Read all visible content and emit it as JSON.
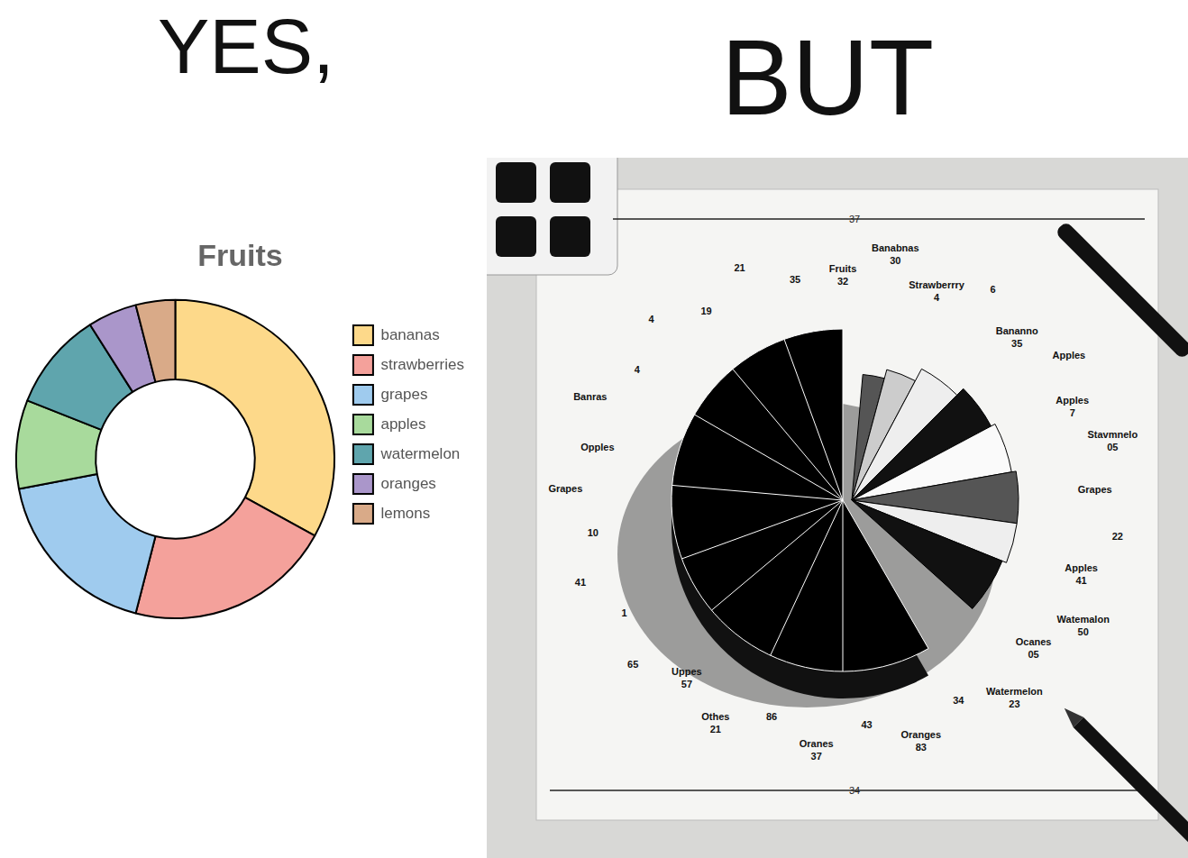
{
  "header": {
    "left": "YES,",
    "right": "BUT"
  },
  "chart_data": {
    "type": "doughnut",
    "title": "Fruits",
    "categories": [
      "bananas",
      "strawberries",
      "grapes",
      "apples",
      "watermelon",
      "oranges",
      "lemons"
    ],
    "values": [
      33,
      21,
      18,
      9,
      10,
      5,
      4
    ],
    "colors": [
      "#fdd98a",
      "#f4a19b",
      "#9fcbee",
      "#a8da9c",
      "#5fa5ad",
      "#aa96ca",
      "#d9aa88"
    ],
    "legend": "right"
  },
  "sketch": {
    "rule_top": "37",
    "rule_bottom": "34",
    "labels": [
      [
        "Fruits",
        "32"
      ],
      [
        "Banabnas",
        "30"
      ],
      [
        "Strawberrry",
        "4"
      ],
      [
        "6"
      ],
      [
        "Bananno",
        "35"
      ],
      [
        "Apples"
      ],
      [
        "Apples",
        "7"
      ],
      [
        "Stavmnelo",
        "05"
      ],
      [
        "Grapes"
      ],
      [
        "22"
      ],
      [
        "Apples",
        "41"
      ],
      [
        "Watemalon",
        "50"
      ],
      [
        "Ocanes",
        "05"
      ],
      [
        "Watermelon",
        "23"
      ],
      [
        "34"
      ],
      [
        "Oranges",
        "83"
      ],
      [
        "43"
      ],
      [
        "Oranes",
        "37"
      ],
      [
        "86"
      ],
      [
        "Othes",
        "21"
      ],
      [
        "Uppes",
        "57"
      ],
      [
        "65"
      ],
      [
        "1"
      ],
      [
        "41"
      ],
      [
        "10"
      ],
      [
        "Grapes"
      ],
      [
        "Opples"
      ],
      [
        "Banras"
      ],
      [
        "4"
      ],
      [
        "4"
      ],
      [
        "19"
      ],
      [
        "21"
      ],
      [
        "35"
      ]
    ]
  }
}
